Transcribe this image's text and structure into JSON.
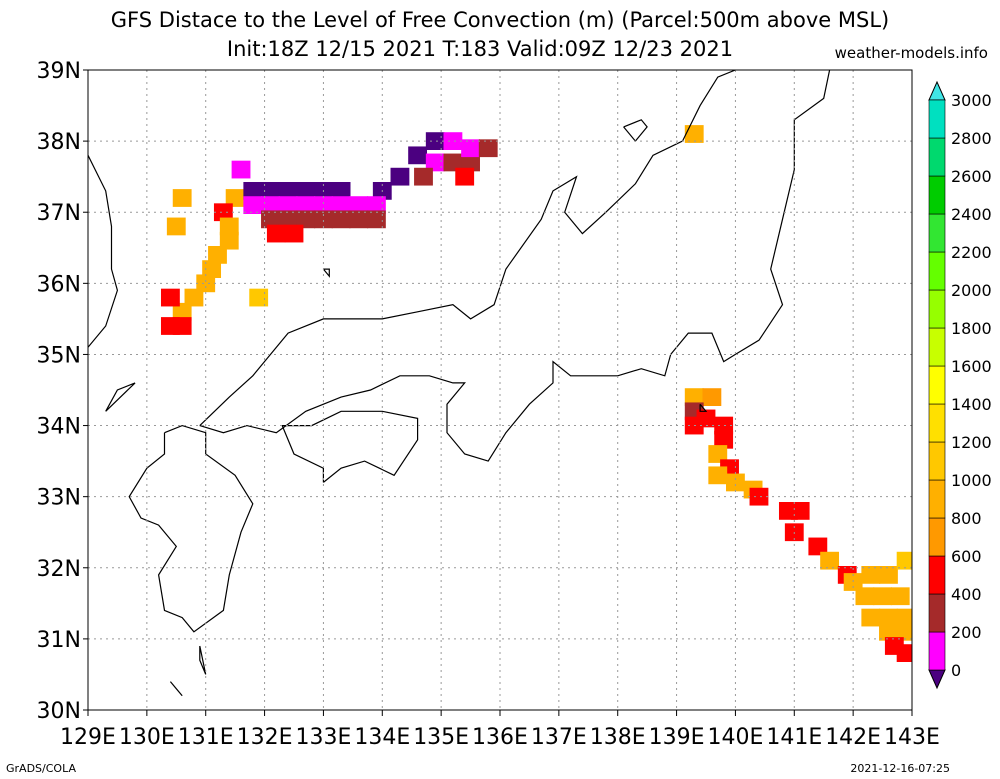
{
  "title": "GFS Distace to the Level of Free Convection (m) (Parcel:500m above MSL)",
  "subtitle": "Init:18Z 12/15 2021 T:183 Valid:09Z 12/23 2021",
  "site": "weather-models.info",
  "footer_left": "GrADS/COLA",
  "footer_right": "2021-12-16-07:25",
  "map": {
    "lon_range": [
      129,
      143
    ],
    "lat_range": [
      30,
      39
    ],
    "lon_labels": [
      "129E",
      "130E",
      "131E",
      "132E",
      "133E",
      "134E",
      "135E",
      "136E",
      "137E",
      "138E",
      "139E",
      "140E",
      "141E",
      "142E",
      "143E"
    ],
    "lat_labels": [
      "30N",
      "31N",
      "32N",
      "33N",
      "34N",
      "35N",
      "36N",
      "37N",
      "38N",
      "39N"
    ]
  },
  "colorbar": {
    "labels": [
      "0",
      "200",
      "400",
      "600",
      "800",
      "1000",
      "1200",
      "1400",
      "1600",
      "1800",
      "2000",
      "2200",
      "2400",
      "2600",
      "2800",
      "3000"
    ],
    "colors": [
      "#4b0080",
      "#ff00ff",
      "#a52a2a",
      "#ff0000",
      "#ff9900",
      "#ffb000",
      "#ffc800",
      "#ffe000",
      "#ffff00",
      "#c8ff00",
      "#96ff00",
      "#64ff00",
      "#32e632",
      "#00cc00",
      "#00d96e",
      "#00e0c0",
      "#00e6e6"
    ],
    "low_color": "#4b0080",
    "high_color": "#40e6e6"
  },
  "cells": [
    {
      "lon": 131.5,
      "lat": 37.2,
      "v": 1000
    },
    {
      "lon": 131.3,
      "lat": 37.0,
      "v": 600
    },
    {
      "lon": 131.4,
      "lat": 36.8,
      "v": 1000
    },
    {
      "lon": 131.4,
      "lat": 36.6,
      "v": 1000
    },
    {
      "lon": 131.2,
      "lat": 36.4,
      "v": 1000
    },
    {
      "lon": 131.1,
      "lat": 36.2,
      "v": 1000
    },
    {
      "lon": 131.0,
      "lat": 36.0,
      "v": 1000
    },
    {
      "lon": 130.8,
      "lat": 35.8,
      "v": 1000
    },
    {
      "lon": 130.6,
      "lat": 35.6,
      "v": 1000
    },
    {
      "lon": 130.4,
      "lat": 35.8,
      "v": 600
    },
    {
      "lon": 130.4,
      "lat": 35.4,
      "v": 600
    },
    {
      "lon": 130.6,
      "lat": 35.4,
      "v": 600
    },
    {
      "lon": 130.6,
      "lat": 37.2,
      "v": 1000
    },
    {
      "lon": 130.5,
      "lat": 36.8,
      "v": 1000
    },
    {
      "lon": 131.9,
      "lat": 35.8,
      "v": 1200
    },
    {
      "lon": 131.6,
      "lat": 37.6,
      "v": 200
    },
    {
      "lon": 131.8,
      "lat": 37.3,
      "v": 0
    },
    {
      "lon": 132.1,
      "lat": 37.3,
      "v": 0
    },
    {
      "lon": 132.4,
      "lat": 37.3,
      "v": 0
    },
    {
      "lon": 132.7,
      "lat": 37.3,
      "v": 0
    },
    {
      "lon": 133.0,
      "lat": 37.3,
      "v": 0
    },
    {
      "lon": 133.3,
      "lat": 37.3,
      "v": 0
    },
    {
      "lon": 134.0,
      "lat": 37.3,
      "v": 0
    },
    {
      "lon": 131.8,
      "lat": 37.1,
      "v": 200
    },
    {
      "lon": 132.1,
      "lat": 37.1,
      "v": 200
    },
    {
      "lon": 132.4,
      "lat": 37.1,
      "v": 200
    },
    {
      "lon": 132.7,
      "lat": 37.1,
      "v": 200
    },
    {
      "lon": 133.0,
      "lat": 37.1,
      "v": 200
    },
    {
      "lon": 133.3,
      "lat": 37.1,
      "v": 200
    },
    {
      "lon": 133.6,
      "lat": 37.1,
      "v": 200
    },
    {
      "lon": 133.9,
      "lat": 37.1,
      "v": 200
    },
    {
      "lon": 132.1,
      "lat": 36.9,
      "v": 400
    },
    {
      "lon": 132.4,
      "lat": 36.9,
      "v": 400
    },
    {
      "lon": 132.7,
      "lat": 36.9,
      "v": 400
    },
    {
      "lon": 133.0,
      "lat": 36.9,
      "v": 400
    },
    {
      "lon": 133.3,
      "lat": 36.9,
      "v": 400
    },
    {
      "lon": 133.6,
      "lat": 36.9,
      "v": 400
    },
    {
      "lon": 133.9,
      "lat": 36.9,
      "v": 400
    },
    {
      "lon": 132.2,
      "lat": 36.7,
      "v": 600
    },
    {
      "lon": 132.5,
      "lat": 36.7,
      "v": 600
    },
    {
      "lon": 134.3,
      "lat": 37.5,
      "v": 0
    },
    {
      "lon": 134.6,
      "lat": 37.8,
      "v": 0
    },
    {
      "lon": 134.9,
      "lat": 38.0,
      "v": 0
    },
    {
      "lon": 134.9,
      "lat": 37.7,
      "v": 200
    },
    {
      "lon": 135.2,
      "lat": 38.0,
      "v": 200
    },
    {
      "lon": 135.2,
      "lat": 37.7,
      "v": 400
    },
    {
      "lon": 135.5,
      "lat": 37.7,
      "v": 400
    },
    {
      "lon": 135.5,
      "lat": 37.9,
      "v": 200
    },
    {
      "lon": 135.8,
      "lat": 37.9,
      "v": 400
    },
    {
      "lon": 135.4,
      "lat": 37.5,
      "v": 600
    },
    {
      "lon": 134.7,
      "lat": 37.5,
      "v": 400
    },
    {
      "lon": 139.3,
      "lat": 38.1,
      "v": 1000
    },
    {
      "lon": 139.3,
      "lat": 34.4,
      "v": 1000
    },
    {
      "lon": 139.6,
      "lat": 34.4,
      "v": 800
    },
    {
      "lon": 139.3,
      "lat": 34.2,
      "v": 400
    },
    {
      "lon": 139.5,
      "lat": 34.1,
      "v": 600
    },
    {
      "lon": 139.3,
      "lat": 34.0,
      "v": 600
    },
    {
      "lon": 139.8,
      "lat": 34.0,
      "v": 600
    },
    {
      "lon": 139.8,
      "lat": 33.8,
      "v": 600
    },
    {
      "lon": 139.7,
      "lat": 33.6,
      "v": 1000
    },
    {
      "lon": 139.9,
      "lat": 33.4,
      "v": 600
    },
    {
      "lon": 139.7,
      "lat": 33.3,
      "v": 1000
    },
    {
      "lon": 140.0,
      "lat": 33.2,
      "v": 1000
    },
    {
      "lon": 140.3,
      "lat": 33.1,
      "v": 1000
    },
    {
      "lon": 140.4,
      "lat": 33.0,
      "v": 600
    },
    {
      "lon": 140.9,
      "lat": 32.8,
      "v": 600
    },
    {
      "lon": 141.1,
      "lat": 32.8,
      "v": 600
    },
    {
      "lon": 141.0,
      "lat": 32.5,
      "v": 600
    },
    {
      "lon": 141.4,
      "lat": 32.3,
      "v": 600
    },
    {
      "lon": 141.6,
      "lat": 32.1,
      "v": 1000
    },
    {
      "lon": 141.9,
      "lat": 31.9,
      "v": 600
    },
    {
      "lon": 142.0,
      "lat": 31.8,
      "v": 1000
    },
    {
      "lon": 142.3,
      "lat": 31.9,
      "v": 1000
    },
    {
      "lon": 142.6,
      "lat": 31.9,
      "v": 1000
    },
    {
      "lon": 142.9,
      "lat": 32.1,
      "v": 1200
    },
    {
      "lon": 142.2,
      "lat": 31.6,
      "v": 1000
    },
    {
      "lon": 142.5,
      "lat": 31.6,
      "v": 1000
    },
    {
      "lon": 142.8,
      "lat": 31.6,
      "v": 1000
    },
    {
      "lon": 142.3,
      "lat": 31.3,
      "v": 1000
    },
    {
      "lon": 142.6,
      "lat": 31.3,
      "v": 1000
    },
    {
      "lon": 142.9,
      "lat": 31.3,
      "v": 1000
    },
    {
      "lon": 142.6,
      "lat": 31.1,
      "v": 1000
    },
    {
      "lon": 142.9,
      "lat": 31.1,
      "v": 1000
    },
    {
      "lon": 142.7,
      "lat": 30.9,
      "v": 600
    },
    {
      "lon": 142.9,
      "lat": 30.8,
      "v": 600
    }
  ],
  "coastlines": [
    [
      [
        129.0,
        37.8
      ],
      [
        129.3,
        37.3
      ],
      [
        129.4,
        36.8
      ],
      [
        129.4,
        36.2
      ],
      [
        129.5,
        35.9
      ],
      [
        129.3,
        35.4
      ],
      [
        129.0,
        35.1
      ]
    ],
    [
      [
        130.3,
        33.9
      ],
      [
        130.6,
        34.0
      ],
      [
        131.0,
        33.9
      ],
      [
        131.0,
        33.6
      ],
      [
        131.5,
        33.3
      ],
      [
        131.8,
        32.9
      ],
      [
        131.6,
        32.5
      ],
      [
        131.4,
        31.9
      ],
      [
        131.3,
        31.4
      ],
      [
        130.8,
        31.1
      ],
      [
        130.6,
        31.3
      ],
      [
        130.3,
        31.4
      ],
      [
        130.2,
        31.9
      ],
      [
        130.5,
        32.3
      ],
      [
        130.2,
        32.6
      ],
      [
        129.9,
        32.7
      ],
      [
        129.7,
        33.0
      ],
      [
        130.0,
        33.4
      ],
      [
        130.3,
        33.6
      ],
      [
        130.3,
        33.9
      ]
    ],
    [
      [
        130.9,
        34.0
      ],
      [
        131.4,
        34.4
      ],
      [
        131.8,
        34.7
      ],
      [
        132.4,
        35.3
      ],
      [
        133.0,
        35.5
      ],
      [
        133.4,
        35.5
      ],
      [
        134.0,
        35.5
      ],
      [
        134.6,
        35.6
      ],
      [
        135.2,
        35.7
      ],
      [
        135.5,
        35.5
      ],
      [
        135.9,
        35.7
      ],
      [
        136.1,
        36.2
      ],
      [
        136.7,
        36.9
      ],
      [
        136.9,
        37.3
      ],
      [
        137.3,
        37.5
      ],
      [
        137.1,
        37.0
      ],
      [
        137.4,
        36.7
      ],
      [
        137.8,
        37.0
      ],
      [
        138.3,
        37.4
      ],
      [
        138.6,
        37.8
      ],
      [
        139.1,
        38.0
      ],
      [
        139.4,
        38.5
      ],
      [
        139.7,
        38.9
      ],
      [
        140.0,
        39.0
      ]
    ],
    [
      [
        130.9,
        34.0
      ],
      [
        131.3,
        33.9
      ],
      [
        131.7,
        34.0
      ],
      [
        132.2,
        33.9
      ],
      [
        132.7,
        34.2
      ],
      [
        133.3,
        34.4
      ],
      [
        133.8,
        34.5
      ],
      [
        134.3,
        34.7
      ],
      [
        134.8,
        34.7
      ],
      [
        135.2,
        34.6
      ],
      [
        135.4,
        34.6
      ],
      [
        135.1,
        34.3
      ],
      [
        135.1,
        33.9
      ],
      [
        135.4,
        33.6
      ],
      [
        135.8,
        33.5
      ],
      [
        136.1,
        33.9
      ],
      [
        136.5,
        34.3
      ],
      [
        136.9,
        34.6
      ],
      [
        136.9,
        34.9
      ],
      [
        137.2,
        34.7
      ],
      [
        137.5,
        34.7
      ],
      [
        138.0,
        34.7
      ],
      [
        138.4,
        34.8
      ],
      [
        138.8,
        34.7
      ],
      [
        138.9,
        35.0
      ],
      [
        139.2,
        35.3
      ],
      [
        139.6,
        35.3
      ],
      [
        139.8,
        34.9
      ],
      [
        140.0,
        35.0
      ],
      [
        140.4,
        35.2
      ],
      [
        140.8,
        35.7
      ],
      [
        140.6,
        36.2
      ],
      [
        140.8,
        36.9
      ],
      [
        141.0,
        37.6
      ],
      [
        141.0,
        38.3
      ],
      [
        141.5,
        38.6
      ],
      [
        141.6,
        39.0
      ]
    ],
    [
      [
        133.0,
        33.2
      ],
      [
        133.0,
        33.4
      ],
      [
        132.5,
        33.6
      ],
      [
        132.3,
        34.0
      ],
      [
        132.8,
        34.0
      ],
      [
        133.3,
        34.2
      ],
      [
        134.0,
        34.2
      ],
      [
        134.6,
        34.1
      ],
      [
        134.6,
        33.8
      ],
      [
        134.2,
        33.3
      ],
      [
        133.7,
        33.5
      ],
      [
        133.3,
        33.4
      ],
      [
        133.0,
        33.2
      ]
    ],
    [
      [
        138.1,
        38.2
      ],
      [
        138.3,
        38.0
      ],
      [
        138.5,
        38.2
      ],
      [
        138.4,
        38.3
      ],
      [
        138.1,
        38.2
      ]
    ],
    [
      [
        129.8,
        34.6
      ],
      [
        129.3,
        34.2
      ],
      [
        129.5,
        34.5
      ],
      [
        129.8,
        34.6
      ]
    ],
    [
      [
        130.4,
        30.4
      ],
      [
        130.6,
        30.2
      ],
      [
        130.5,
        30.3
      ],
      [
        130.4,
        30.4
      ]
    ],
    [
      [
        130.9,
        30.9
      ],
      [
        131.0,
        30.5
      ],
      [
        130.9,
        30.7
      ],
      [
        130.9,
        30.9
      ]
    ],
    [
      [
        133.0,
        36.2
      ],
      [
        133.1,
        36.2
      ],
      [
        133.1,
        36.1
      ],
      [
        133.0,
        36.2
      ]
    ],
    [
      [
        139.4,
        34.3
      ],
      [
        139.5,
        34.2
      ],
      [
        139.4,
        34.2
      ],
      [
        139.4,
        34.3
      ]
    ]
  ]
}
